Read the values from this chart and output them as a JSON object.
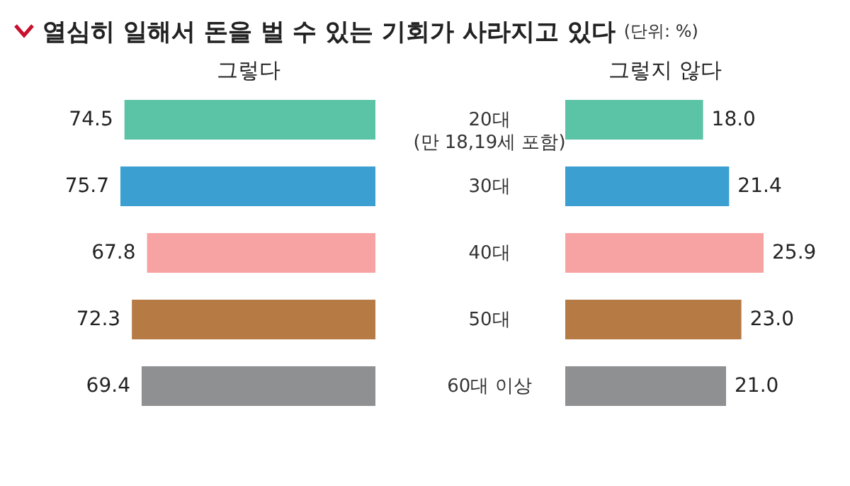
{
  "chart_data": [
    {
      "type": "bar",
      "orientation": "horizontal",
      "title": "열심히 일해서 돈을 벌 수 있는 기회가 사라지고 있다",
      "xlabel": "그렇다",
      "categories": [
        "20대\n(만 18,19세 포함)",
        "30대",
        "40대",
        "50대",
        "60대 이상"
      ],
      "values": [
        74.5,
        75.7,
        67.8,
        72.3,
        69.4
      ],
      "value_labels": [
        "74.5",
        "75.7",
        "67.8",
        "72.3",
        "69.4"
      ],
      "colors": [
        "#5cc4a6",
        "#3b9fd2",
        "#f8a3a3",
        "#b67a45",
        "#8f9092"
      ]
    },
    {
      "type": "bar",
      "orientation": "horizontal",
      "subtitle": "(단위: %)",
      "xlabel": "그렇지 않다",
      "categories": [
        null,
        null,
        null,
        null,
        null
      ],
      "values": [
        18.0,
        21.4,
        25.9,
        23.0,
        21.0
      ],
      "value_labels": [
        "18.0",
        "21.4",
        "25.9",
        "23.0",
        "21.0"
      ],
      "colors": [
        "#5cc4a6",
        "#3b9fd2",
        "#f8a3a3",
        "#b67a45",
        "#8f9092"
      ]
    }
  ]
}
